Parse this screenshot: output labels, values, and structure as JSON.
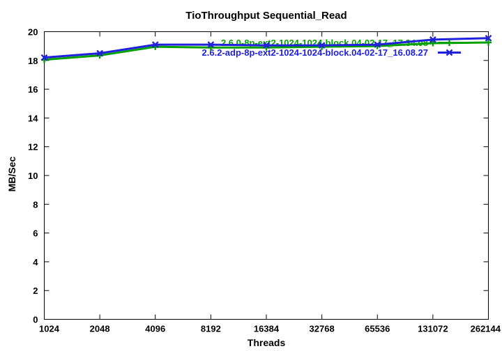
{
  "chart_data": {
    "type": "line",
    "title": "TioThroughput Sequential_Read",
    "xlabel": "Threads",
    "ylabel": "MB/Sec",
    "x_scale": "log2",
    "categories": [
      1024,
      2048,
      4096,
      8192,
      16384,
      32768,
      65536,
      131072,
      262144
    ],
    "xtick_labels": [
      "1024",
      "2048",
      "4096",
      "8192",
      "16384",
      "32768",
      "65536",
      "131072",
      "262144"
    ],
    "ytick_labels": [
      "0",
      "2",
      "4",
      "6",
      "8",
      "10",
      "12",
      "14",
      "16",
      "18",
      "20"
    ],
    "ylim": [
      0,
      20
    ],
    "ytick_step": 2,
    "grid": false,
    "legend_position": "top-right-inside",
    "frame_color": "#000000",
    "background_color": "#ffffff",
    "series": [
      {
        "name": "2.6.0-8p-ext2-1024-1024-block.04-02-17_17.34.08",
        "color": "#00a000",
        "marker": "plus",
        "values": [
          18.05,
          18.35,
          18.95,
          18.9,
          18.9,
          18.95,
          19.0,
          19.2,
          19.25
        ]
      },
      {
        "name": "2.6.2-adp-8p-ext2-1024-1024-block.04-02-17_16.08.27",
        "color": "#2020dd",
        "marker": "cross",
        "values": [
          18.2,
          18.5,
          19.1,
          19.1,
          19.05,
          19.05,
          19.1,
          19.45,
          19.55
        ]
      }
    ]
  }
}
